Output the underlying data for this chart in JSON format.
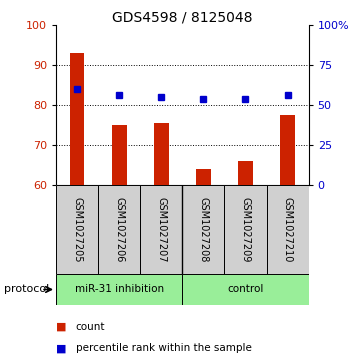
{
  "title": "GDS4598 / 8125048",
  "samples": [
    "GSM1027205",
    "GSM1027206",
    "GSM1027207",
    "GSM1027208",
    "GSM1027209",
    "GSM1027210"
  ],
  "bar_values": [
    93,
    75,
    75.5,
    64,
    66,
    77.5
  ],
  "dot_values": [
    84,
    82.5,
    82,
    81.5,
    81.5,
    82.5
  ],
  "ylim_left": [
    60,
    100
  ],
  "ylim_right": [
    0,
    100
  ],
  "yticks_left": [
    60,
    70,
    80,
    90,
    100
  ],
  "ytick_labels_left": [
    "60",
    "70",
    "80",
    "90",
    "100"
  ],
  "yticks_right": [
    0,
    25,
    50,
    75,
    100
  ],
  "ytick_labels_right": [
    "0",
    "25",
    "50",
    "75",
    "100%"
  ],
  "bar_color": "#cc2200",
  "dot_color": "#0000cc",
  "group1_label": "miR-31 inhibition",
  "group2_label": "control",
  "group_color": "#99ee99",
  "label_bg_color": "#d0d0d0",
  "protocol_label": "protocol",
  "legend_count_label": "count",
  "legend_percentile_label": "percentile rank within the sample",
  "grid_lines": [
    70,
    80,
    90
  ]
}
